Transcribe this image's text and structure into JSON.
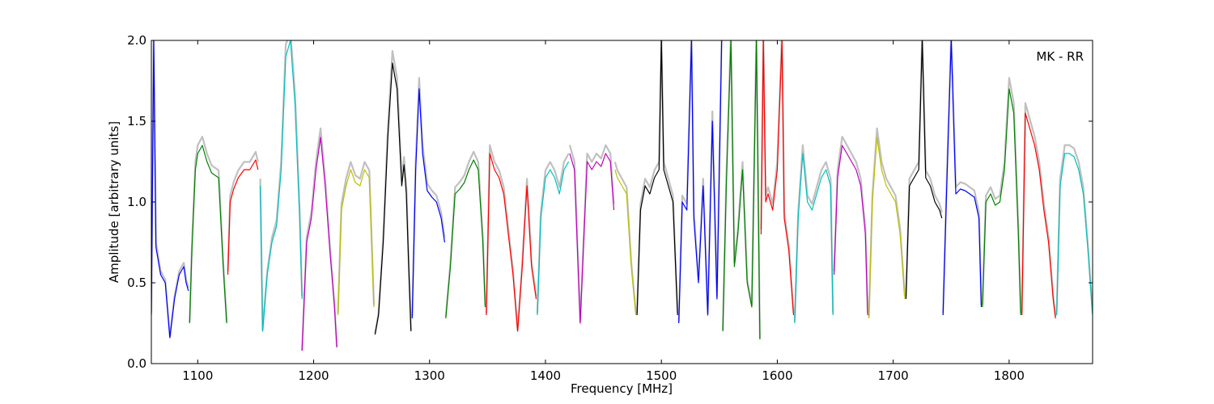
{
  "chart_data": {
    "type": "line",
    "title": "",
    "annotation": "MK - RR",
    "xlabel": "Frequency [MHz]",
    "ylabel": "Amplitude [arbitrary units]",
    "xlim": [
      1060,
      1872
    ],
    "ylim": [
      0.0,
      2.0
    ],
    "x_ticks": [
      1100,
      1200,
      1300,
      1400,
      1500,
      1600,
      1700,
      1800
    ],
    "y_ticks": [
      0.0,
      0.5,
      1.0,
      1.5,
      2.0
    ],
    "x_tick_labels": [
      "1100",
      "1200",
      "1300",
      "1400",
      "1500",
      "1600",
      "1700",
      "1800"
    ],
    "y_tick_labels": [
      "0.0",
      "0.5",
      "1.0",
      "1.5",
      "2.0"
    ],
    "grid": false,
    "legend": "none",
    "envelope_color": "#c0c0c0",
    "series": [
      {
        "color": "#0000ff",
        "x": [
          1060,
          1062,
          1064,
          1068,
          1072,
          1076,
          1080,
          1084,
          1088,
          1090,
          1092
        ],
        "y": [
          0.3,
          2.0,
          0.72,
          0.55,
          0.5,
          0.16,
          0.4,
          0.55,
          0.6,
          0.5,
          0.45
        ]
      },
      {
        "color": "#008000",
        "x": [
          1093,
          1095,
          1098,
          1100,
          1104,
          1108,
          1112,
          1118,
          1122,
          1125
        ],
        "y": [
          0.25,
          0.7,
          1.2,
          1.3,
          1.35,
          1.25,
          1.18,
          1.15,
          0.6,
          0.25
        ]
      },
      {
        "color": "#ff0000",
        "x": [
          1126,
          1128,
          1131,
          1135,
          1140,
          1145,
          1150,
          1152
        ],
        "y": [
          0.55,
          1.0,
          1.08,
          1.15,
          1.2,
          1.2,
          1.26,
          1.2
        ]
      },
      {
        "color": "#00bfbf",
        "x": [
          1154,
          1156,
          1160,
          1164,
          1168,
          1172,
          1176,
          1180,
          1184,
          1188,
          1190
        ],
        "y": [
          1.1,
          0.2,
          0.55,
          0.75,
          0.85,
          1.2,
          1.9,
          2.0,
          1.6,
          0.9,
          0.4
        ]
      },
      {
        "color": "#bf00bf",
        "x": [
          1190,
          1194,
          1198,
          1202,
          1206,
          1210,
          1214,
          1218,
          1220
        ],
        "y": [
          0.08,
          0.75,
          0.9,
          1.2,
          1.4,
          1.1,
          0.7,
          0.35,
          0.1
        ]
      },
      {
        "color": "#bfbf00",
        "x": [
          1221,
          1224,
          1228,
          1232,
          1236,
          1240,
          1244,
          1248,
          1252
        ],
        "y": [
          0.3,
          0.95,
          1.1,
          1.2,
          1.12,
          1.1,
          1.2,
          1.15,
          0.35
        ]
      },
      {
        "color": "#000000",
        "x": [
          1253,
          1256,
          1260,
          1264,
          1268,
          1272,
          1276,
          1278,
          1280,
          1282,
          1284
        ],
        "y": [
          0.18,
          0.3,
          0.75,
          1.4,
          1.86,
          1.7,
          1.1,
          1.23,
          1.05,
          0.6,
          0.2
        ]
      },
      {
        "color": "#0000ff",
        "x": [
          1285,
          1288,
          1291,
          1294,
          1298,
          1302,
          1306,
          1310,
          1313
        ],
        "y": [
          0.28,
          1.2,
          1.7,
          1.3,
          1.07,
          1.03,
          1.0,
          0.9,
          0.75
        ]
      },
      {
        "color": "#008000",
        "x": [
          1314,
          1318,
          1322,
          1326,
          1330,
          1334,
          1338,
          1342,
          1346,
          1348
        ],
        "y": [
          0.28,
          0.6,
          1.05,
          1.08,
          1.12,
          1.2,
          1.26,
          1.2,
          0.75,
          0.35
        ]
      },
      {
        "color": "#ff0000",
        "x": [
          1349,
          1352,
          1356,
          1360,
          1364,
          1368,
          1372,
          1376,
          1380,
          1384,
          1388,
          1392
        ],
        "y": [
          0.3,
          1.3,
          1.2,
          1.15,
          1.05,
          0.8,
          0.55,
          0.2,
          0.6,
          1.1,
          0.6,
          0.4
        ]
      },
      {
        "color": "#00bfbf",
        "x": [
          1393,
          1396,
          1400,
          1404,
          1408,
          1412,
          1416,
          1420
        ],
        "y": [
          0.3,
          0.9,
          1.15,
          1.2,
          1.15,
          1.05,
          1.2,
          1.25
        ]
      },
      {
        "color": "#bf00bf",
        "x": [
          1421,
          1425,
          1430,
          1436,
          1440,
          1444,
          1448,
          1452,
          1456,
          1459
        ],
        "y": [
          1.3,
          1.2,
          0.25,
          1.25,
          1.2,
          1.25,
          1.22,
          1.3,
          1.25,
          0.95
        ]
      },
      {
        "color": "#bfbf00",
        "x": [
          1460,
          1462,
          1466,
          1470,
          1474,
          1478
        ],
        "y": [
          1.2,
          1.15,
          1.1,
          1.05,
          0.6,
          0.3
        ]
      },
      {
        "color": "#000000",
        "x": [
          1479,
          1482,
          1486,
          1490,
          1494,
          1498,
          1500,
          1502,
          1506,
          1510,
          1514
        ],
        "y": [
          0.3,
          0.95,
          1.1,
          1.05,
          1.15,
          1.2,
          2.0,
          1.2,
          1.1,
          1.0,
          0.3
        ]
      },
      {
        "color": "#0000ff",
        "x": [
          1515,
          1518,
          1522,
          1526,
          1528,
          1532,
          1536,
          1540,
          1544,
          1548,
          1552
        ],
        "y": [
          0.25,
          1.0,
          0.95,
          2.0,
          0.9,
          0.5,
          1.1,
          0.3,
          1.5,
          0.4,
          2.0
        ]
      },
      {
        "color": "#008000",
        "x": [
          1553,
          1556,
          1560,
          1563,
          1566,
          1570,
          1574,
          1578,
          1582,
          1585
        ],
        "y": [
          0.2,
          1.1,
          2.0,
          0.6,
          0.8,
          1.2,
          0.5,
          0.35,
          2.0,
          0.15
        ]
      },
      {
        "color": "#ff0000",
        "x": [
          1586,
          1588,
          1590,
          1592,
          1596,
          1600,
          1604,
          1606,
          1610,
          1614
        ],
        "y": [
          0.8,
          2.0,
          1.0,
          1.05,
          0.95,
          1.2,
          2.0,
          0.9,
          0.7,
          0.3
        ]
      },
      {
        "color": "#00bfbf",
        "x": [
          1615,
          1618,
          1622,
          1626,
          1630,
          1634,
          1638,
          1642,
          1646,
          1648
        ],
        "y": [
          0.25,
          0.9,
          1.3,
          1.0,
          0.95,
          1.05,
          1.15,
          1.2,
          1.1,
          0.3
        ]
      },
      {
        "color": "#bf00bf",
        "x": [
          1649,
          1652,
          1656,
          1660,
          1664,
          1668,
          1672,
          1676,
          1678
        ],
        "y": [
          0.55,
          1.15,
          1.35,
          1.3,
          1.25,
          1.2,
          1.1,
          0.8,
          0.3
        ]
      },
      {
        "color": "#bfbf00",
        "x": [
          1679,
          1682,
          1686,
          1690,
          1694,
          1698,
          1702,
          1706,
          1710
        ],
        "y": [
          0.28,
          1.0,
          1.4,
          1.2,
          1.1,
          1.05,
          1.0,
          0.8,
          0.4
        ]
      },
      {
        "color": "#000000",
        "x": [
          1711,
          1714,
          1718,
          1722,
          1725,
          1728,
          1732,
          1736,
          1740,
          1742
        ],
        "y": [
          0.4,
          1.1,
          1.15,
          1.2,
          2.0,
          1.15,
          1.1,
          1.0,
          0.95,
          0.9
        ]
      },
      {
        "color": "#0000ff",
        "x": [
          1743,
          1746,
          1750,
          1754,
          1758,
          1762,
          1766,
          1770,
          1774,
          1776
        ],
        "y": [
          0.3,
          1.05,
          2.0,
          1.05,
          1.08,
          1.07,
          1.05,
          1.03,
          0.9,
          0.35
        ]
      },
      {
        "color": "#008000",
        "x": [
          1777,
          1780,
          1784,
          1788,
          1792,
          1796,
          1800,
          1804,
          1808,
          1810
        ],
        "y": [
          0.35,
          1.0,
          1.05,
          0.98,
          1.0,
          1.2,
          1.7,
          1.55,
          0.8,
          0.3
        ]
      },
      {
        "color": "#ff0000",
        "x": [
          1811,
          1814,
          1818,
          1822,
          1826,
          1830,
          1834,
          1838,
          1840
        ],
        "y": [
          0.3,
          1.55,
          1.45,
          1.35,
          1.2,
          0.95,
          0.75,
          0.4,
          0.28
        ]
      },
      {
        "color": "#00bfbf",
        "x": [
          1841,
          1844,
          1848,
          1852,
          1856,
          1860,
          1864,
          1868,
          1872
        ],
        "y": [
          0.3,
          1.1,
          1.3,
          1.3,
          1.28,
          1.2,
          1.05,
          0.7,
          0.3
        ]
      }
    ]
  }
}
